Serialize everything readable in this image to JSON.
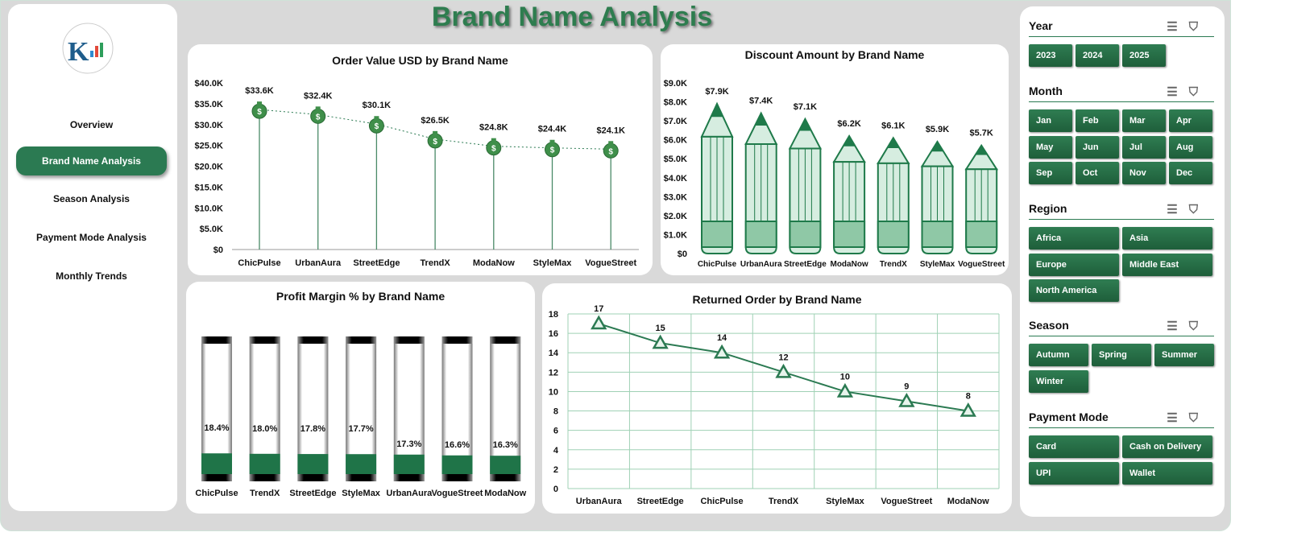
{
  "title": "Brand Name Analysis",
  "nav": [
    {
      "label": "Overview",
      "active": false
    },
    {
      "label": "Brand Name Analysis",
      "active": true
    },
    {
      "label": "Season Analysis",
      "active": false
    },
    {
      "label": "Payment Mode Analysis",
      "active": false
    },
    {
      "label": "Monthly Trends",
      "active": false
    }
  ],
  "colors": {
    "accent": "#2b7a52",
    "background": "#d9d9d9"
  },
  "chart_data": [
    {
      "type": "line",
      "title": "Order Value USD by Brand Name",
      "marker": "money-bag-icon",
      "categories": [
        "ChicPulse",
        "UrbanAura",
        "StreetEdge",
        "TrendX",
        "ModaNow",
        "StyleMax",
        "VogueStreet"
      ],
      "values": [
        33.6,
        32.4,
        30.1,
        26.5,
        24.8,
        24.4,
        24.1
      ],
      "labels": [
        "$33.6K",
        "$32.4K",
        "$30.1K",
        "$26.5K",
        "$24.8K",
        "$24.4K",
        "$24.1K"
      ],
      "ylim": [
        0,
        40
      ],
      "yticks": [
        "$0",
        "$5.0K",
        "$10.0K",
        "$15.0K",
        "$20.0K",
        "$25.0K",
        "$30.0K",
        "$35.0K",
        "$40.0K"
      ]
    },
    {
      "type": "bar",
      "title": "Discount Amount by Brand Name",
      "marker": "pencil",
      "categories": [
        "ChicPulse",
        "UrbanAura",
        "StreetEdge",
        "ModaNow",
        "TrendX",
        "StyleMax",
        "VogueStreet"
      ],
      "values": [
        7.9,
        7.4,
        7.1,
        6.2,
        6.1,
        5.9,
        5.7
      ],
      "labels": [
        "$7.9K",
        "$7.4K",
        "$7.1K",
        "$6.2K",
        "$6.1K",
        "$5.9K",
        "$5.7K"
      ],
      "ylim": [
        0,
        9
      ],
      "yticks": [
        "$0",
        "$1.0K",
        "$2.0K",
        "$3.0K",
        "$4.0K",
        "$5.0K",
        "$6.0K",
        "$7.0K",
        "$8.0K",
        "$9.0K"
      ]
    },
    {
      "type": "bar",
      "title": "Profit Margin % by Brand Name",
      "categories": [
        "ChicPulse",
        "TrendX",
        "StreetEdge",
        "StyleMax",
        "UrbanAura",
        "VogueStreet",
        "ModaNow"
      ],
      "values": [
        18.4,
        18.0,
        17.8,
        17.7,
        17.3,
        16.6,
        16.3
      ],
      "labels": [
        "18.4%",
        "18.0%",
        "17.8%",
        "17.7%",
        "17.3%",
        "16.6%",
        "16.3%"
      ]
    },
    {
      "type": "line",
      "title": "Returned Order by Brand Name",
      "categories": [
        "UrbanAura",
        "StreetEdge",
        "ChicPulse",
        "TrendX",
        "StyleMax",
        "VogueStreet",
        "ModaNow"
      ],
      "values": [
        17,
        15,
        14,
        12,
        10,
        9,
        8
      ],
      "labels": [
        "17",
        "15",
        "14",
        "12",
        "10",
        "9",
        "8"
      ],
      "ylim": [
        0,
        18
      ],
      "yticks": [
        "0",
        "2",
        "4",
        "6",
        "8",
        "10",
        "12",
        "14",
        "16",
        "18"
      ],
      "grid": true
    }
  ],
  "slicers": [
    {
      "title": "Year",
      "cols": 3,
      "width": 54,
      "items": [
        "2023",
        "2024",
        "2025"
      ]
    },
    {
      "title": "Month",
      "cols": 4,
      "width": 54,
      "items": [
        "Jan",
        "Feb",
        "Mar",
        "Apr",
        "May",
        "Jun",
        "Jul",
        "Aug",
        "Sep",
        "Oct",
        "Nov",
        "Dec"
      ]
    },
    {
      "title": "Region",
      "cols": 2,
      "width": 112,
      "items": [
        "Africa",
        "Asia",
        "Europe",
        "Middle East",
        "North America"
      ]
    },
    {
      "title": "Season",
      "cols": 3,
      "width": 74,
      "items": [
        "Autumn",
        "Spring",
        "Summer",
        "Winter"
      ]
    },
    {
      "title": "Payment Mode",
      "cols": 2,
      "width": 112,
      "items": [
        "Card",
        "Cash on Delivery",
        "UPI",
        "Wallet"
      ]
    }
  ]
}
